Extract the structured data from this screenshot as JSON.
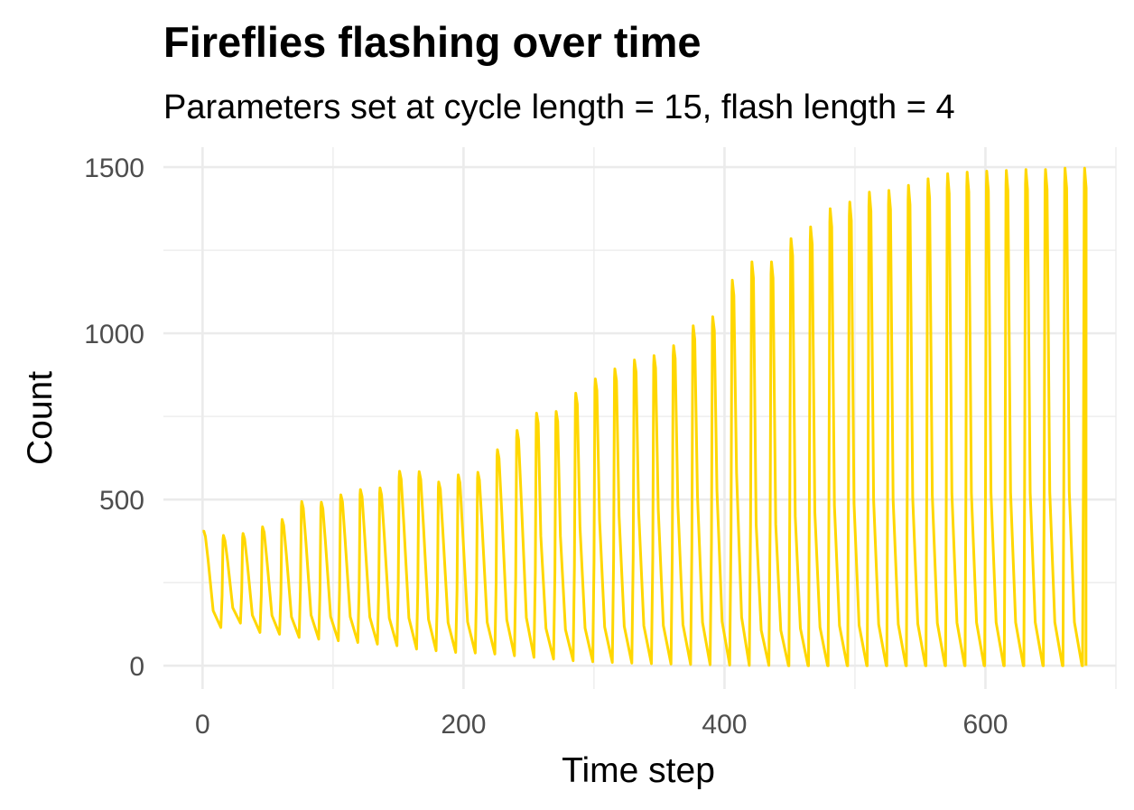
{
  "chart_data": {
    "type": "line",
    "title": "Fireflies flashing over time",
    "subtitle": "Parameters set at cycle length = 15, flash length = 4",
    "xlabel": "Time step",
    "ylabel": "Count",
    "xlim": [
      -30,
      700
    ],
    "ylim": [
      -70,
      1560
    ],
    "x_ticks": [
      0,
      200,
      400,
      600
    ],
    "y_ticks": [
      0,
      500,
      1000,
      1500
    ],
    "grid": true,
    "legend": "none",
    "colors": {
      "series": "#FFD700"
    },
    "series": [
      {
        "peaks": [
          [
            1,
            405
          ],
          [
            16,
            392
          ],
          [
            31,
            398
          ],
          [
            46,
            418
          ],
          [
            61,
            440
          ],
          [
            76,
            494
          ],
          [
            91,
            492
          ],
          [
            106,
            514
          ],
          [
            121,
            530
          ],
          [
            136,
            535
          ],
          [
            151,
            585
          ],
          [
            166,
            584
          ],
          [
            181,
            553
          ],
          [
            196,
            574
          ],
          [
            211,
            582
          ],
          [
            226,
            650
          ],
          [
            241,
            708
          ],
          [
            256,
            760
          ],
          [
            271,
            765
          ],
          [
            286,
            820
          ],
          [
            301,
            863
          ],
          [
            316,
            893
          ],
          [
            331,
            920
          ],
          [
            346,
            933
          ],
          [
            361,
            963
          ],
          [
            376,
            1023
          ],
          [
            391,
            1050
          ],
          [
            406,
            1160
          ],
          [
            421,
            1215
          ],
          [
            436,
            1215
          ],
          [
            451,
            1285
          ],
          [
            466,
            1320
          ],
          [
            481,
            1375
          ],
          [
            496,
            1395
          ],
          [
            511,
            1425
          ],
          [
            526,
            1430
          ],
          [
            541,
            1445
          ],
          [
            556,
            1465
          ],
          [
            571,
            1480
          ],
          [
            586,
            1485
          ],
          [
            601,
            1488
          ],
          [
            616,
            1490
          ],
          [
            631,
            1493
          ],
          [
            646,
            1493
          ],
          [
            661,
            1497
          ],
          [
            676,
            1497
          ]
        ],
        "troughs": [
          [
            14,
            115
          ],
          [
            29,
            128
          ],
          [
            44,
            100
          ],
          [
            59,
            95
          ],
          [
            74,
            85
          ],
          [
            89,
            80
          ],
          [
            104,
            75
          ],
          [
            119,
            70
          ],
          [
            134,
            65
          ],
          [
            149,
            60
          ],
          [
            164,
            50
          ],
          [
            179,
            45
          ],
          [
            194,
            40
          ],
          [
            209,
            38
          ],
          [
            224,
            35
          ],
          [
            239,
            30
          ],
          [
            254,
            25
          ],
          [
            269,
            20
          ],
          [
            284,
            15
          ],
          [
            299,
            12
          ],
          [
            314,
            10
          ],
          [
            329,
            8
          ],
          [
            344,
            6
          ],
          [
            359,
            5
          ],
          [
            374,
            4
          ],
          [
            389,
            3
          ],
          [
            404,
            2
          ],
          [
            419,
            1
          ],
          [
            434,
            1
          ],
          [
            449,
            0
          ],
          [
            464,
            0
          ],
          [
            479,
            0
          ],
          [
            494,
            0
          ],
          [
            509,
            0
          ],
          [
            524,
            0
          ],
          [
            539,
            0
          ],
          [
            554,
            0
          ],
          [
            569,
            0
          ],
          [
            584,
            0
          ],
          [
            599,
            0
          ],
          [
            614,
            0
          ],
          [
            629,
            0
          ],
          [
            644,
            0
          ],
          [
            659,
            0
          ],
          [
            674,
            0
          ]
        ],
        "end": [
          677,
          0
        ]
      }
    ]
  }
}
